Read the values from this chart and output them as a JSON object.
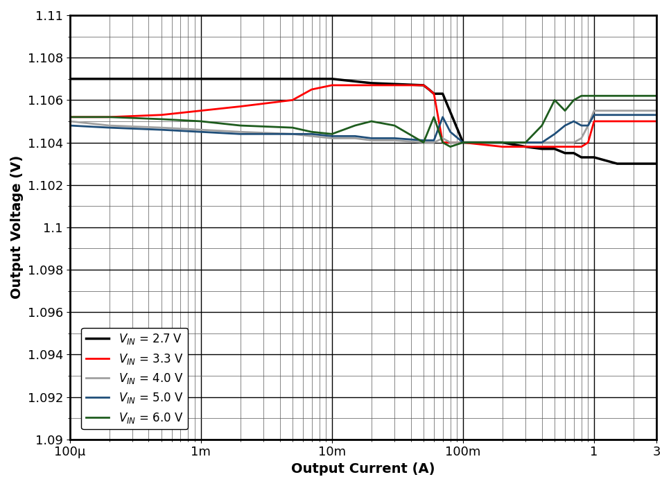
{
  "title": "",
  "xlabel": "Output Current (A)",
  "ylabel": "Output Voltage (V)",
  "xlim": [
    0.0001,
    3
  ],
  "ylim": [
    1.09,
    1.11
  ],
  "yticks": [
    1.09,
    1.092,
    1.094,
    1.096,
    1.098,
    1.1,
    1.102,
    1.104,
    1.106,
    1.108,
    1.11
  ],
  "xtick_labels": [
    "100μ",
    "1m",
    "10m",
    "100m",
    "1",
    "3"
  ],
  "xtick_vals": [
    0.0001,
    0.001,
    0.01,
    0.1,
    1,
    3
  ],
  "series": [
    {
      "label": "Vⁱₙ = 2.7 V",
      "color": "#000000",
      "linewidth": 2.5,
      "x": [
        0.0001,
        0.0002,
        0.0005,
        0.001,
        0.002,
        0.005,
        0.007,
        0.01,
        0.02,
        0.05,
        0.055,
        0.06,
        0.07,
        0.1,
        0.2,
        0.3,
        0.4,
        0.5,
        0.6,
        0.7,
        0.8,
        1.0,
        1.5,
        2.0,
        2.5,
        3.0
      ],
      "y": [
        1.107,
        1.107,
        1.107,
        1.107,
        1.107,
        1.107,
        1.107,
        1.107,
        1.1068,
        1.1067,
        1.1065,
        1.1063,
        1.1063,
        1.104,
        1.104,
        1.1038,
        1.1037,
        1.1037,
        1.1035,
        1.1035,
        1.1033,
        1.1033,
        1.103,
        1.103,
        1.103,
        1.103
      ]
    },
    {
      "label": "Vⁱₙ = 3.3 V",
      "color": "#ff0000",
      "linewidth": 2.0,
      "x": [
        0.0001,
        0.0002,
        0.0005,
        0.001,
        0.002,
        0.005,
        0.007,
        0.01,
        0.015,
        0.02,
        0.05,
        0.055,
        0.06,
        0.07,
        0.1,
        0.2,
        0.3,
        0.4,
        0.5,
        0.6,
        0.7,
        0.8,
        0.9,
        1.0,
        1.5,
        2.0,
        2.5,
        3.0
      ],
      "y": [
        1.1052,
        1.1052,
        1.1053,
        1.1055,
        1.1057,
        1.106,
        1.1065,
        1.1067,
        1.1067,
        1.1067,
        1.1067,
        1.1065,
        1.1063,
        1.104,
        1.104,
        1.1038,
        1.1038,
        1.1038,
        1.1038,
        1.1038,
        1.1038,
        1.1038,
        1.104,
        1.105,
        1.105,
        1.105,
        1.105,
        1.105
      ]
    },
    {
      "label": "Vⁱₙ = 4.0 V",
      "color": "#a0a0a0",
      "linewidth": 2.0,
      "x": [
        0.0001,
        0.0002,
        0.0005,
        0.001,
        0.002,
        0.005,
        0.007,
        0.01,
        0.015,
        0.02,
        0.03,
        0.05,
        0.06,
        0.07,
        0.08,
        0.1,
        0.2,
        0.3,
        0.4,
        0.5,
        0.6,
        0.7,
        0.8,
        0.9,
        1.0,
        1.5,
        2.0,
        2.5,
        3.0
      ],
      "y": [
        1.105,
        1.1048,
        1.1047,
        1.1046,
        1.1045,
        1.1044,
        1.1043,
        1.1042,
        1.1042,
        1.1041,
        1.1041,
        1.104,
        1.104,
        1.1042,
        1.104,
        1.104,
        1.104,
        1.104,
        1.104,
        1.104,
        1.104,
        1.104,
        1.1042,
        1.1048,
        1.1055,
        1.1055,
        1.1055,
        1.1055,
        1.1055
      ]
    },
    {
      "label": "Vⁱₙ = 5.0 V",
      "color": "#1f4e79",
      "linewidth": 2.0,
      "x": [
        0.0001,
        0.0002,
        0.0005,
        0.001,
        0.002,
        0.005,
        0.007,
        0.01,
        0.015,
        0.02,
        0.03,
        0.05,
        0.06,
        0.07,
        0.08,
        0.1,
        0.2,
        0.3,
        0.4,
        0.5,
        0.6,
        0.7,
        0.8,
        0.9,
        1.0,
        1.5,
        2.0,
        2.5,
        3.0
      ],
      "y": [
        1.1048,
        1.1047,
        1.1046,
        1.1045,
        1.1044,
        1.1044,
        1.1044,
        1.1043,
        1.1043,
        1.1042,
        1.1042,
        1.1041,
        1.1041,
        1.1052,
        1.1045,
        1.104,
        1.104,
        1.104,
        1.104,
        1.1044,
        1.1048,
        1.105,
        1.1048,
        1.1048,
        1.1053,
        1.1053,
        1.1053,
        1.1053,
        1.1053
      ]
    },
    {
      "label": "Vⁱₙ = 6.0 V",
      "color": "#1e5c1e",
      "linewidth": 2.0,
      "x": [
        0.0001,
        0.0002,
        0.0005,
        0.001,
        0.002,
        0.005,
        0.007,
        0.01,
        0.015,
        0.02,
        0.03,
        0.05,
        0.06,
        0.07,
        0.08,
        0.1,
        0.2,
        0.3,
        0.4,
        0.5,
        0.6,
        0.7,
        0.8,
        0.9,
        1.0,
        1.5,
        2.0,
        2.5,
        3.0
      ],
      "y": [
        1.1052,
        1.1052,
        1.1051,
        1.105,
        1.1048,
        1.1047,
        1.1045,
        1.1044,
        1.1048,
        1.105,
        1.1048,
        1.104,
        1.1052,
        1.104,
        1.1038,
        1.104,
        1.104,
        1.104,
        1.1048,
        1.106,
        1.1055,
        1.106,
        1.1062,
        1.1062,
        1.1062,
        1.1062,
        1.1062,
        1.1062,
        1.1062
      ]
    }
  ],
  "legend_loc": "lower left",
  "grid_major_color": "#000000",
  "grid_minor_color": "#888888",
  "background_color": "#ffffff",
  "font_size": 13
}
